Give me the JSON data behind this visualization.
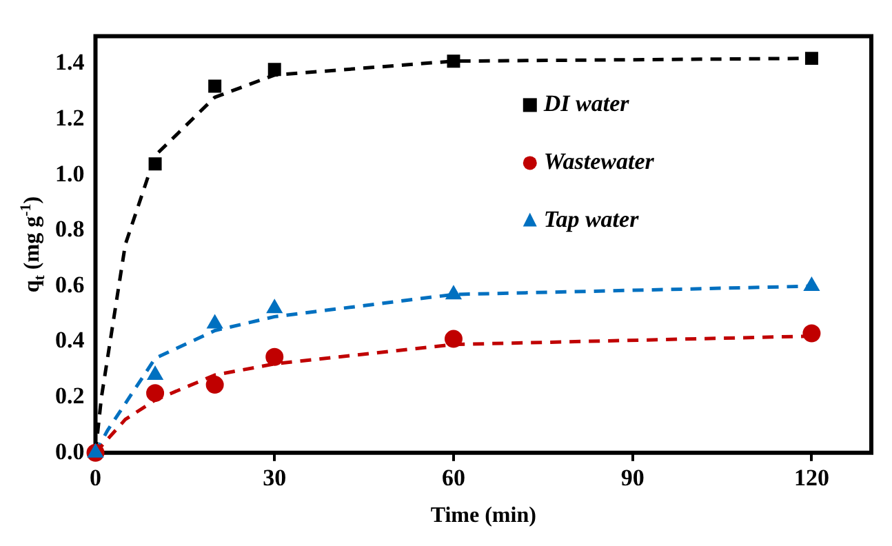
{
  "chart_data": {
    "type": "scatter",
    "xlabel": "Time (min)",
    "ylabel": "q$_{t}$ (mg g$^{-1}$)",
    "xlim": [
      0,
      130
    ],
    "xticks": [
      0,
      30,
      60,
      90,
      120
    ],
    "ylim": [
      0,
      1.5
    ],
    "yticks": [
      {
        "value": 0,
        "label": "0.0"
      },
      0.2,
      0.4,
      0.6,
      0.8,
      {
        "value": 1,
        "label": "1.0"
      },
      1.2,
      1.4
    ],
    "grid": false,
    "legend": "top right",
    "series": [
      {
        "name": "DI water",
        "marker": "square",
        "color": "#000000",
        "x": [
          10,
          20,
          30,
          60,
          120
        ],
        "values": [
          1.04,
          1.32,
          1.38,
          1.41,
          1.42
        ]
      },
      {
        "name": "Wastewater",
        "marker": "circle",
        "color": "#c00000",
        "x": [
          0,
          10,
          20,
          30,
          60,
          120
        ],
        "values": [
          0,
          0.215,
          0.245,
          0.345,
          0.41,
          0.43
        ]
      },
      {
        "name": "Tap water",
        "marker": "triangle",
        "color": "#0070c0",
        "x": [
          0,
          10,
          20,
          30,
          60,
          120
        ],
        "values": [
          0,
          0.28,
          0.465,
          0.52,
          0.57,
          0.6
        ]
      },
      {
        "type": "line",
        "line_style": "dashed",
        "marker": "none",
        "color": "#000000",
        "x": [
          0,
          1,
          5,
          10,
          20,
          30,
          60,
          120
        ],
        "values": [
          0,
          0.2,
          0.75,
          1.07,
          1.28,
          1.36,
          1.41,
          1.42
        ]
      },
      {
        "type": "line",
        "line_style": "dashed",
        "marker": "none",
        "color": "#c00000",
        "x": [
          0,
          5,
          10,
          20,
          30,
          60,
          120
        ],
        "values": [
          0,
          0.12,
          0.19,
          0.28,
          0.32,
          0.39,
          0.42
        ]
      },
      {
        "type": "line",
        "line_style": "dashed",
        "marker": "none",
        "color": "#0070c0",
        "x": [
          0,
          2,
          10,
          20,
          30,
          60,
          120
        ],
        "values": [
          0,
          0.08,
          0.34,
          0.44,
          0.49,
          0.57,
          0.6
        ]
      }
    ]
  }
}
